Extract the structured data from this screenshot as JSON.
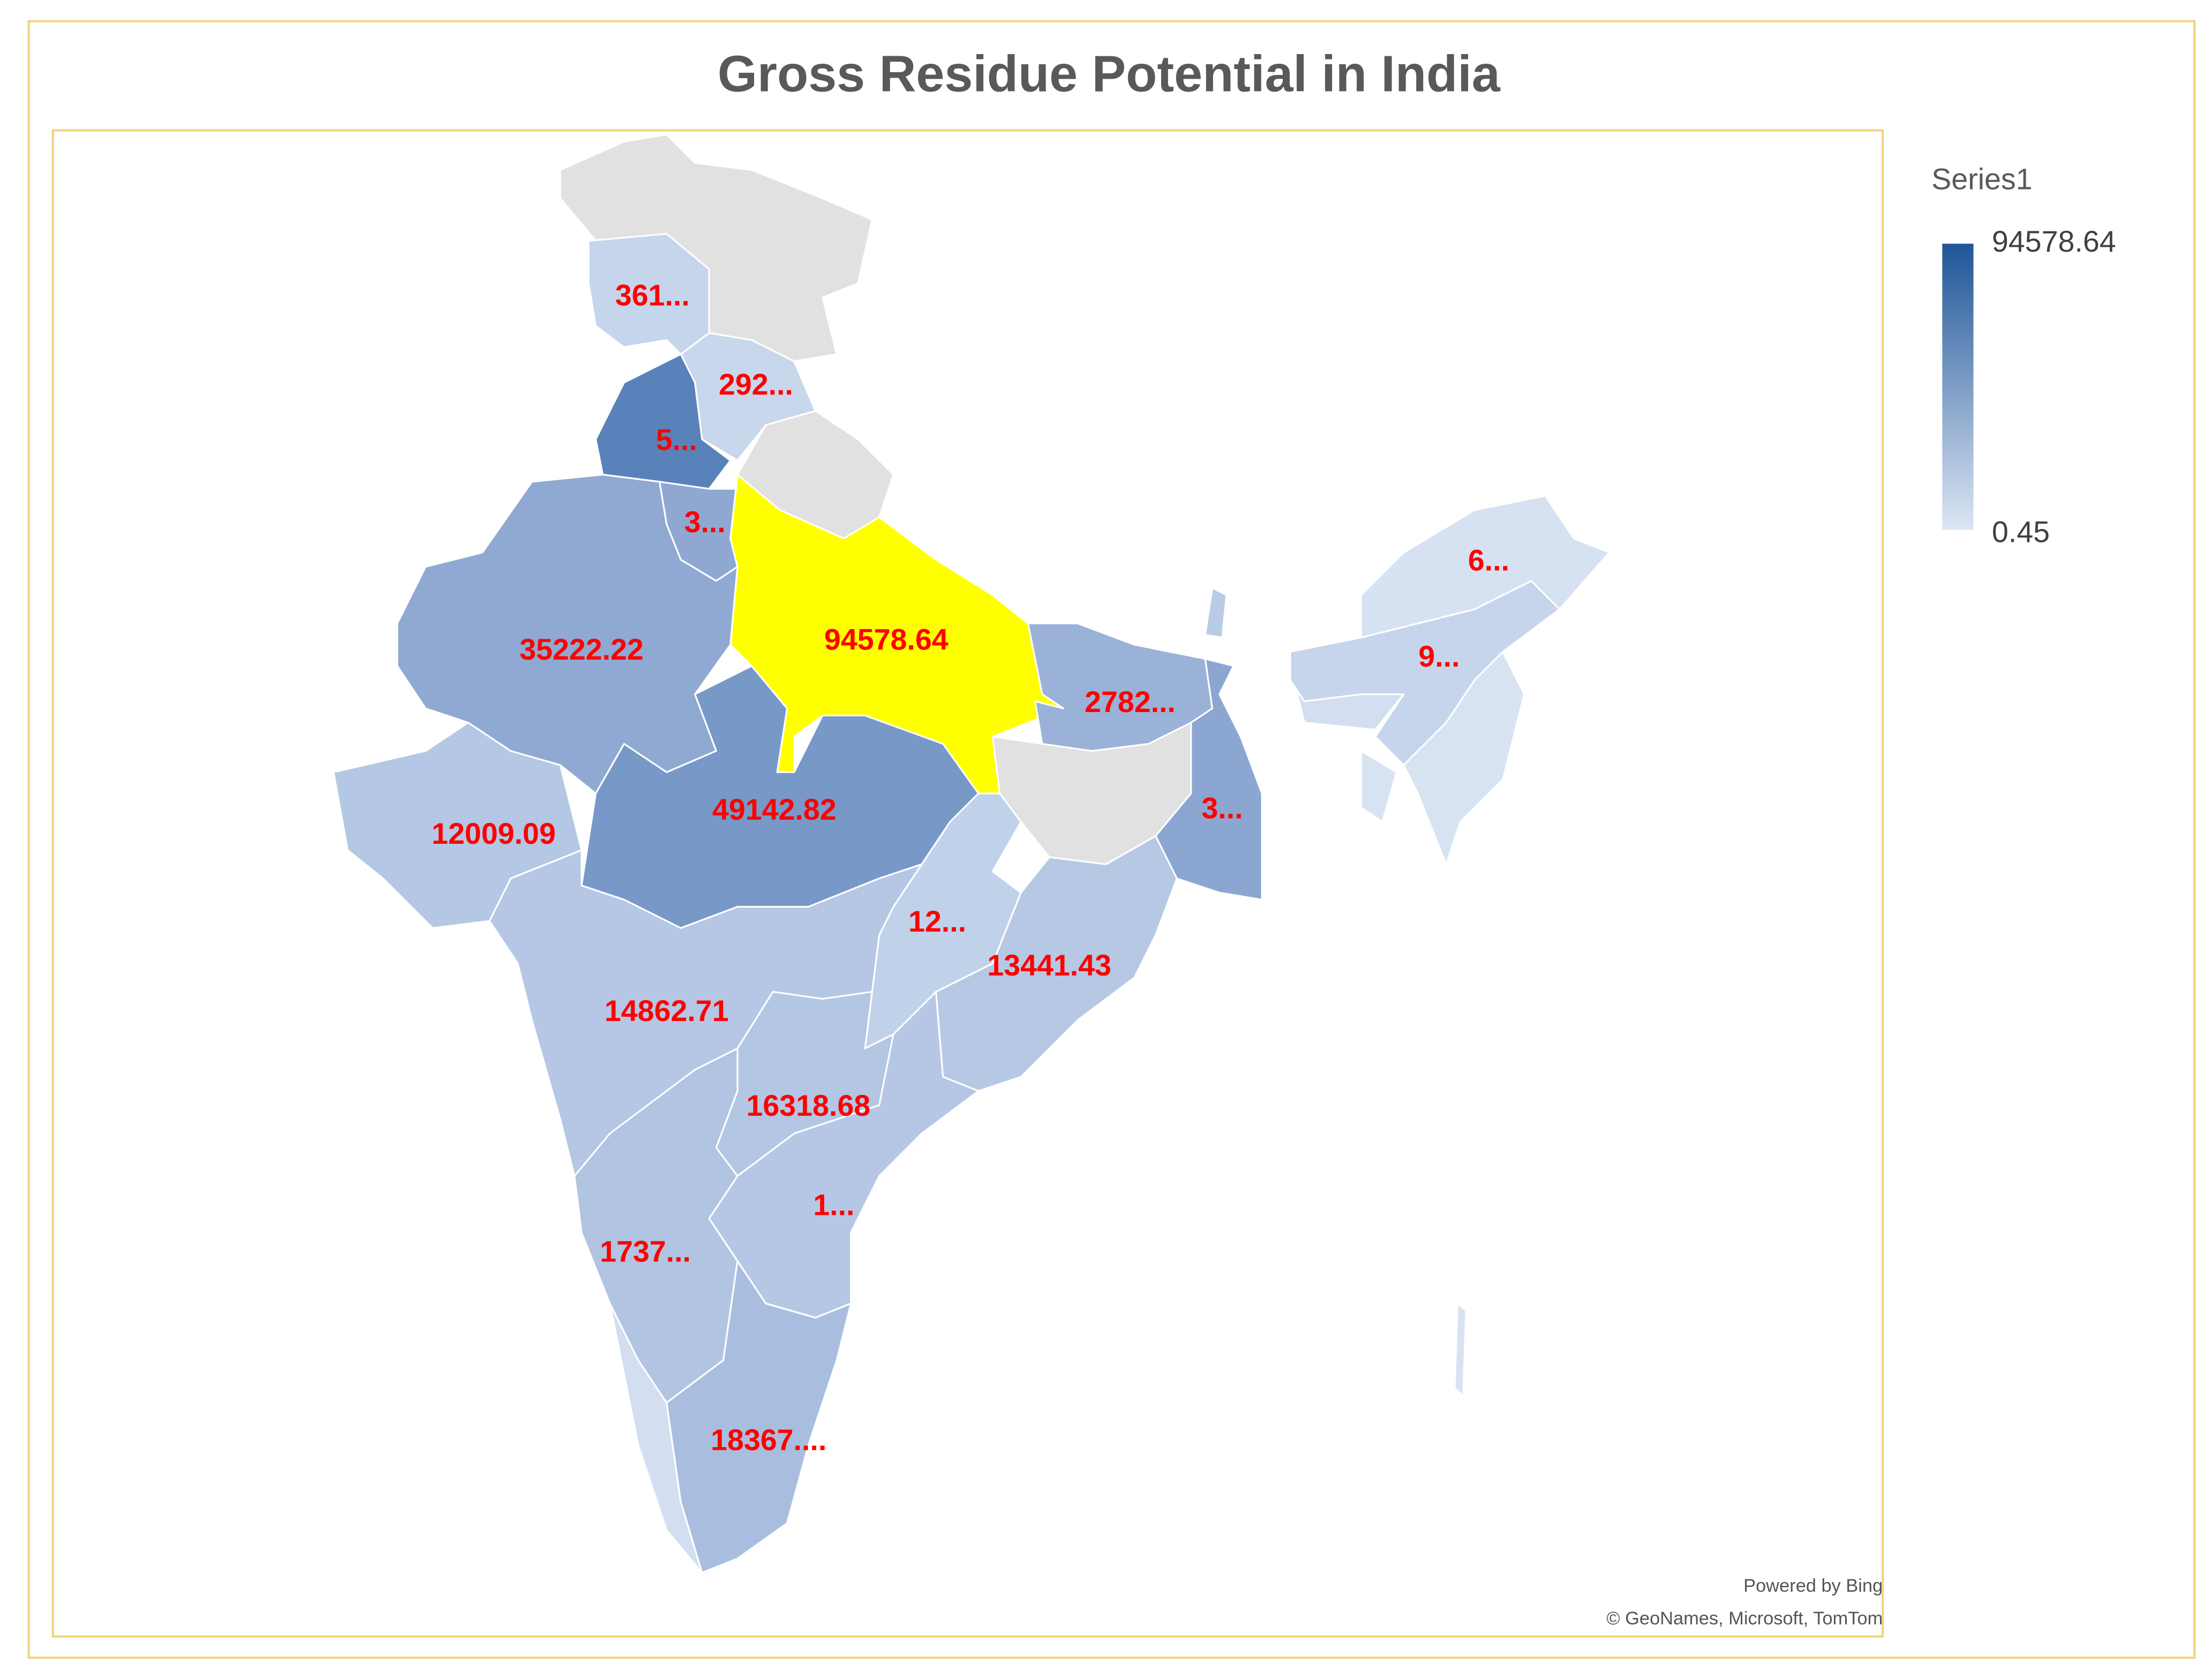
{
  "title": "Gross Residue Potential in India",
  "legend": {
    "title": "Series1",
    "max": 94578.64,
    "min": 0.45,
    "colors": [
      "#dce6f4",
      "#1f5597"
    ]
  },
  "regions": [
    {
      "label": "361...",
      "color": "#c5d5eb"
    },
    {
      "label": "292...",
      "color": "#c9d7ec"
    },
    {
      "label": "5...",
      "color": "#5a82ba"
    },
    {
      "label": "3...",
      "color": "#8ea8d2"
    },
    {
      "label": "94578.64",
      "color": "#ffff00"
    },
    {
      "label": "35222.22",
      "color": "#8fa9d2"
    },
    {
      "label": "12009.09",
      "color": "#b4c7e4"
    },
    {
      "label": "49142.82",
      "color": "#7898c8"
    },
    {
      "label": "2782...",
      "color": "#9ab2d8"
    },
    {
      "label": "3...",
      "color": "#8ba6d0"
    },
    {
      "label": "12...",
      "color": "#c0d1ea"
    },
    {
      "label": "13441.43",
      "color": "#b6c8e4"
    },
    {
      "label": "14862.71",
      "color": "#b5c7e4"
    },
    {
      "label": "16318.68",
      "color": "#b3c6e3"
    },
    {
      "label": "1...",
      "color": "#b5c7e4"
    },
    {
      "label": "1737...",
      "color": "#b1c4e2"
    },
    {
      "label": "18367....",
      "color": "#a9bede"
    },
    {
      "label": "9...",
      "color": "#c6d5eb"
    },
    {
      "label": "6...",
      "color": "#d6e1f2"
    }
  ],
  "attribution": [
    "Powered by Bing",
    "© GeoNames, Microsoft, TomTom"
  ]
}
